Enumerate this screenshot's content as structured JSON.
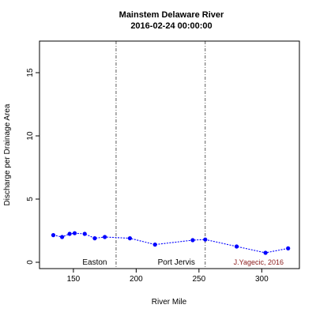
{
  "chart_data": {
    "type": "line",
    "title": "Mainstem Delaware River",
    "subtitle": "2016-02-24 00:00:00",
    "xlabel": "River Mile",
    "ylabel": "Discharge per Drainage Area",
    "xlim": [
      123,
      330
    ],
    "ylim": [
      -0.5,
      17.5
    ],
    "xticks": [
      150,
      200,
      250,
      300
    ],
    "yticks": [
      0,
      5,
      10,
      15
    ],
    "grid": false,
    "series": [
      {
        "color": "#0000ff",
        "x": [
          134,
          141,
          147,
          151,
          159,
          167,
          175,
          195,
          215,
          245,
          255,
          280,
          303,
          321
        ],
        "y": [
          2.15,
          2.0,
          2.25,
          2.3,
          2.25,
          1.9,
          2.0,
          1.9,
          1.4,
          1.75,
          1.8,
          1.25,
          0.75,
          1.1
        ]
      }
    ],
    "vlines": [
      {
        "x": 184,
        "label": "Easton",
        "label_x": 167
      },
      {
        "x": 255,
        "label": "Port Jervis",
        "label_x": 232
      }
    ],
    "credit": {
      "text": "J.Yagecic, 2016",
      "color": "#8b1a1a"
    }
  }
}
